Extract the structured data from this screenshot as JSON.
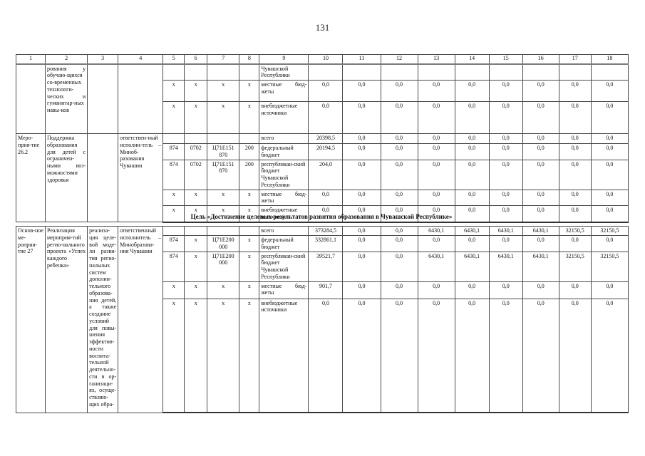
{
  "page_number": "131",
  "section_heading": "Цель «Достижение целевых результатов развития образования в Чувашской Республике»",
  "t1": {
    "headers": [
      "1",
      "2",
      "3",
      "4",
      "5",
      "6",
      "7",
      "8",
      "9",
      "10",
      "11",
      "12",
      "13",
      "14",
      "15",
      "16",
      "17",
      "18"
    ],
    "spans": {
      "col1": "",
      "col2": "рования у обучаю-щихся со-временных технологи-ческих и гуманитар-ных навы-ков",
      "col3": "",
      "col4": ""
    },
    "rows": [
      {
        "cells": [
          "",
          "",
          "",
          "",
          "Чувашской Республики",
          "",
          "",
          "",
          "",
          "",
          "",
          "",
          "",
          ""
        ]
      },
      {
        "cells": [
          "х",
          "х",
          "х",
          "х",
          "местные бюд-жеты",
          "0,0",
          "0,0",
          "0,0",
          "0,0",
          "0,0",
          "0,0",
          "0,0",
          "0,0",
          "0,0"
        ]
      },
      {
        "cells": [
          "х",
          "х",
          "х",
          "х",
          "внебюджетные источники",
          "0,0",
          "0,0",
          "0,0",
          "0,0",
          "0,0",
          "0,0",
          "0,0",
          "0,0",
          "0,0"
        ]
      }
    ]
  },
  "t1b": {
    "spans": {
      "col1": "Меро-прия-тие 26.2",
      "col2": "Поддержка образования для детей с ограничен-ными воз-можностями здоровья",
      "col3": "",
      "col4": "ответствен-ный исполни-тель – Миноб-разования Чувашии"
    },
    "rows": [
      {
        "cells": [
          "",
          "",
          "",
          "",
          "всего",
          "20398,5",
          "0,0",
          "0,0",
          "0,0",
          "0,0",
          "0,0",
          "0,0",
          "0,0",
          "0,0"
        ]
      },
      {
        "cells": [
          "874",
          "0702",
          "Ц71Е151 870",
          "200",
          "федеральный бюджет",
          "20194,5",
          "0,0",
          "0,0",
          "0,0",
          "0,0",
          "0,0",
          "0,0",
          "0,0",
          "0,0"
        ]
      },
      {
        "cells": [
          "874",
          "0702",
          "Ц71Е151 870",
          "200",
          "республикан-ский бюджет Чувашской Республики",
          "204,0",
          "0,0",
          "0,0",
          "0,0",
          "0,0",
          "0,0",
          "0,0",
          "0,0",
          "0,0"
        ]
      },
      {
        "cells": [
          "х",
          "х",
          "х",
          "х",
          "местные бюд-жеты",
          "0,0",
          "0,0",
          "0,0",
          "0,0",
          "0,0",
          "0,0",
          "0,0",
          "0,0",
          "0,0"
        ]
      },
      {
        "cells": [
          "х",
          "х",
          "х",
          "х",
          "внебюджетные источники",
          "0,0",
          "0,0",
          "0,0",
          "0,0",
          "0,0",
          "0,0",
          "0,0",
          "0,0",
          "0,0"
        ]
      }
    ]
  },
  "t2": {
    "spans": {
      "col1": "Основ-ное ме-роприя-тие 27",
      "col2": "Реализация мероприя-тий регио-нального проекта «Успех каждого ребенка»",
      "col3": "реализа-ция целе-вой моде-ли разви-тия регио-нальных систем дополни-тельного образова-ния детей, а также создание условий для повы-шения эффектив-ности воспита-тельной деятельно-сти в ор-ганизаци-ях, осуще-ствляю-щих обра-",
      "col4": "ответственный исполнитель – Минобразова-ния Чувашии"
    },
    "rows": [
      {
        "cells": [
          "",
          "",
          "",
          "",
          "всего",
          "373284,5",
          "0,0",
          "0,0",
          "6430,1",
          "6430,1",
          "6430,1",
          "6430,1",
          "32150,5",
          "32150,5"
        ]
      },
      {
        "cells": [
          "874",
          "х",
          "Ц71Е200 000",
          "х",
          "федеральный бюджет",
          "332861,1",
          "0,0",
          "0,0",
          "0,0",
          "0,0",
          "0,0",
          "0,0",
          "0,0",
          "0,0"
        ]
      },
      {
        "cells": [
          "874",
          "х",
          "Ц71Е200 000",
          "х",
          "республикан-ский бюджет Чувашской Республики",
          "39521,7",
          "0,0",
          "0,0",
          "6430,1",
          "6430,1",
          "6430,1",
          "6430,1",
          "32150,5",
          "32150,5"
        ]
      },
      {
        "cells": [
          "х",
          "х",
          "х",
          "х",
          "местные бюд-жеты",
          "901,7",
          "0,0",
          "0,0",
          "0,0",
          "0,0",
          "0,0",
          "0,0",
          "0,0",
          "0,0"
        ]
      },
      {
        "cells": [
          "х",
          "х",
          "х",
          "х",
          "внебюджетные источники",
          "0,0",
          "0,0",
          "0,0",
          "0,0",
          "0,0",
          "0,0",
          "0,0",
          "0,0",
          "0,0"
        ]
      }
    ]
  }
}
